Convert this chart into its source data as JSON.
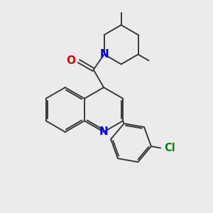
{
  "background_color": "#ebebeb",
  "bond_color": "#3a3a3a",
  "bond_width": 1.4,
  "N_color": "#0000ee",
  "O_color": "#dd0000",
  "Cl_color": "#008800",
  "font_size": 10.5,
  "figsize": [
    3.0,
    3.0
  ],
  "dpi": 100,
  "xlim": [
    0,
    10
  ],
  "ylim": [
    0,
    10
  ]
}
